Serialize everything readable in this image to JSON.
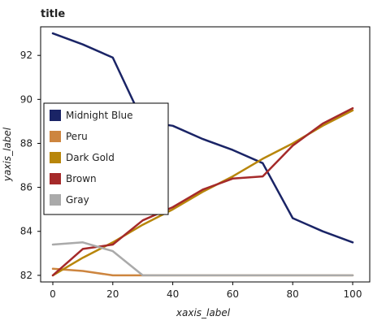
{
  "chart_data": {
    "type": "line",
    "title": "title",
    "xlabel": "xaxis_label",
    "ylabel": "yaxis_label",
    "xlim": [
      0,
      100
    ],
    "ylim": [
      81.7,
      93.3
    ],
    "xticks": [
      "0",
      "20",
      "40",
      "60",
      "80",
      "100"
    ],
    "yticks": [
      "82",
      "84",
      "86",
      "88",
      "90",
      "92"
    ],
    "grid": false,
    "legend_position": "center-left",
    "series": [
      {
        "name": "Midnight Blue",
        "color": "#1a2466",
        "x": [
          0,
          10,
          20,
          30,
          40,
          50,
          60,
          70,
          80,
          90,
          100
        ],
        "y": [
          93.0,
          92.5,
          91.9,
          89.0,
          88.8,
          88.2,
          87.7,
          87.1,
          84.6,
          84.0,
          83.5
        ]
      },
      {
        "name": "Peru",
        "color": "#cd853f",
        "x": [
          0,
          10,
          20,
          30,
          40,
          50,
          60,
          70,
          80,
          90,
          100
        ],
        "y": [
          82.3,
          82.2,
          82.0,
          82.0,
          82.0,
          82.0,
          82.0,
          82.0,
          82.0,
          82.0,
          82.0
        ]
      },
      {
        "name": "Dark Gold",
        "color": "#b8860b",
        "x": [
          0,
          10,
          20,
          30,
          40,
          50,
          60,
          70,
          80,
          90,
          100
        ],
        "y": [
          82.0,
          82.8,
          83.5,
          84.3,
          85.0,
          85.8,
          86.5,
          87.3,
          88.0,
          88.8,
          89.5
        ]
      },
      {
        "name": "Brown",
        "color": "#a52a2a",
        "x": [
          0,
          10,
          20,
          30,
          40,
          50,
          60,
          70,
          80,
          90,
          100
        ],
        "y": [
          82.0,
          83.2,
          83.4,
          84.5,
          85.1,
          85.9,
          86.4,
          86.5,
          87.9,
          88.9,
          89.6
        ]
      },
      {
        "name": "Gray",
        "color": "#aaaaaa",
        "x": [
          0,
          10,
          20,
          30,
          40,
          50,
          60,
          70,
          80,
          90,
          100
        ],
        "y": [
          83.4,
          83.5,
          83.1,
          82.0,
          82.0,
          82.0,
          82.0,
          82.0,
          82.0,
          82.0,
          82.0
        ]
      }
    ]
  }
}
